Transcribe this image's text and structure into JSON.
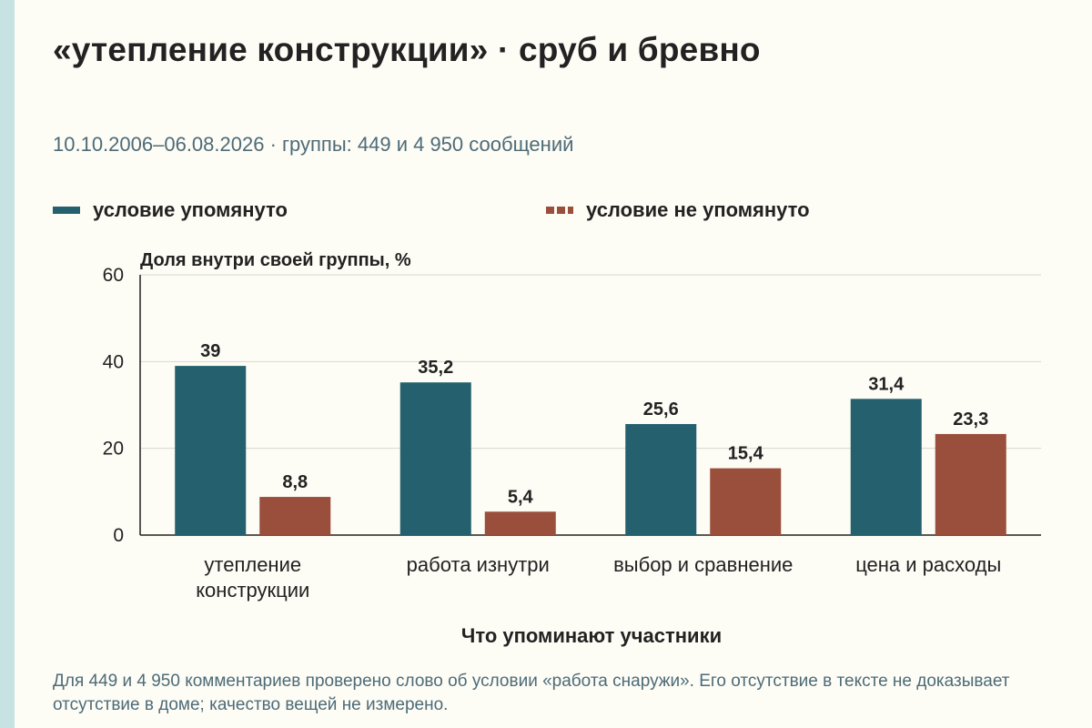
{
  "colors": {
    "series1": "#24606e",
    "series2": "#9a4e3c",
    "grid": "#d8d8d2",
    "axis": "#222222"
  },
  "header": {
    "title": "«утепление конструкции» · сруб и бревно",
    "subtitle": "10.10.2006–06.08.2026 · группы: 449 и 4 950 сообщений"
  },
  "note": "Для 449 и 4 950 комментариев проверено слово об условии «работа снаружи». Его отсутствие в тексте не доказывает отсутствие в доме; качество вещей не измерено.",
  "chart_data": {
    "type": "bar",
    "categories": [
      [
        "утепление",
        "конструкции"
      ],
      [
        "работа изнутри"
      ],
      [
        "выбор и сравнение"
      ],
      [
        "цена и расходы"
      ]
    ],
    "series": [
      {
        "name": "условие упомянуто",
        "values": [
          39,
          35.2,
          25.6,
          31.4
        ],
        "labels": [
          "39",
          "35,2",
          "25,6",
          "31,4"
        ]
      },
      {
        "name": "условие не упомянуто",
        "values": [
          8.8,
          5.4,
          15.4,
          23.3
        ],
        "labels": [
          "8,8",
          "5,4",
          "15,4",
          "23,3"
        ]
      }
    ],
    "ylabel": "Доля внутри своей группы, %",
    "xlabel": "Что упоминают участники",
    "ylim": [
      0,
      60
    ],
    "yticks": [
      0,
      20,
      40,
      60
    ],
    "grid": true,
    "legend": "top"
  }
}
